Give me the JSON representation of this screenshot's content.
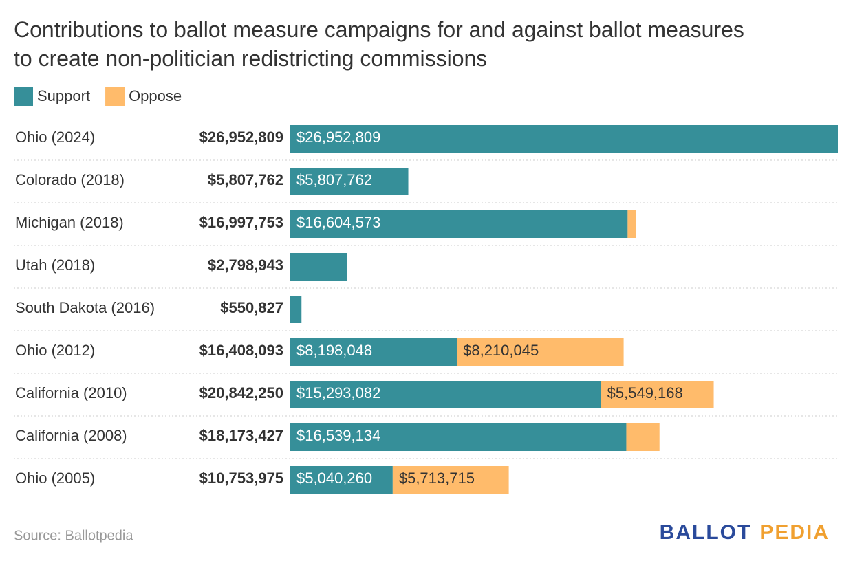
{
  "chart_data": {
    "type": "stacked-bar",
    "title": "Contributions to ballot measure campaigns for and against ballot measures to create non-politician redistricting commissions",
    "categories": [
      "Ohio (2024)",
      "Colorado (2018)",
      "Michigan (2018)",
      "Utah (2018)",
      "South Dakota (2016)",
      "Ohio (2012)",
      "California (2010)",
      "California (2008)",
      "Ohio (2005)"
    ],
    "series": [
      {
        "name": "Support",
        "color": "#368f99",
        "values": [
          26952809,
          5807762,
          16604573,
          2798943,
          550827,
          8198048,
          15293082,
          16539134,
          5040260
        ],
        "value_labels": [
          "$26,952,809",
          "$5,807,762",
          "$16,604,573",
          null,
          null,
          "$8,198,048",
          "$15,293,082",
          "$16,539,134",
          "$5,040,260"
        ]
      },
      {
        "name": "Oppose",
        "color": "#ffbb6b",
        "values": [
          0,
          0,
          393180,
          0,
          0,
          8210045,
          5549168,
          1634293,
          5713715
        ],
        "value_labels": [
          null,
          null,
          null,
          null,
          null,
          "$8,210,045",
          "$5,549,168",
          null,
          "$5,713,715"
        ]
      }
    ],
    "totals": {
      "values": [
        26952809,
        5807762,
        16997753,
        2798943,
        550827,
        16408093,
        20842250,
        18173427,
        10753975
      ],
      "value_labels": [
        "$26,952,809",
        "$5,807,762",
        "$16,997,753",
        "$2,798,943",
        "$550,827",
        "$16,408,093",
        "$20,842,250",
        "$18,173,427",
        "$10,753,975"
      ]
    },
    "source": "Source: Ballotpedia",
    "logo": [
      "BALLOT",
      "PEDIA"
    ]
  }
}
